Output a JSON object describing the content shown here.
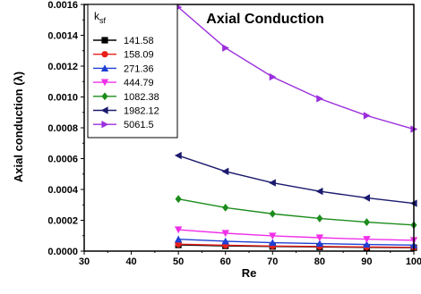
{
  "chart_data": {
    "type": "line",
    "title": "Axial Conduction",
    "xlabel": "Re",
    "ylabel": "Axial conduction (λ)",
    "xlim": [
      30,
      100
    ],
    "ylim": [
      0,
      0.0016
    ],
    "x_ticks": [
      "30",
      "40",
      "50",
      "60",
      "70",
      "80",
      "90",
      "100"
    ],
    "y_ticks": [
      "0.0000",
      "0.0002",
      "0.0004",
      "0.0006",
      "0.0008",
      "0.0010",
      "0.0012",
      "0.0014",
      "0.0016"
    ],
    "legend": {
      "title_main": "k",
      "title_sub": "sf",
      "placement": "top-left"
    },
    "x": [
      50,
      60,
      70,
      80,
      90,
      100
    ],
    "series": [
      {
        "name": "141.58",
        "color": "#000000",
        "marker": "square",
        "values": [
          4e-05,
          3.4e-05,
          3e-05,
          2.7e-05,
          2.4e-05,
          2.2e-05
        ]
      },
      {
        "name": "158.09",
        "color": "#e8201a",
        "marker": "circle",
        "values": [
          4.5e-05,
          3.8e-05,
          3.3e-05,
          3e-05,
          2.7e-05,
          2.4e-05
        ]
      },
      {
        "name": "271.36",
        "color": "#1f3fd4",
        "marker": "triangle-up",
        "values": [
          7.7e-05,
          6.4e-05,
          5.5e-05,
          4.9e-05,
          4.3e-05,
          3.9e-05
        ]
      },
      {
        "name": "444.79",
        "color": "#f030e8",
        "marker": "triangle-down",
        "values": [
          0.000139,
          0.000116,
          9.9e-05,
          8.7e-05,
          7.7e-05,
          7e-05
        ]
      },
      {
        "name": "1082.38",
        "color": "#1c8c1c",
        "marker": "diamond",
        "values": [
          0.000338,
          0.000282,
          0.000242,
          0.000212,
          0.000188,
          0.000169
        ]
      },
      {
        "name": "1982.12",
        "color": "#1a1a6e",
        "marker": "triangle-left",
        "values": [
          0.00062,
          0.000517,
          0.000443,
          0.000388,
          0.000345,
          0.00031
        ]
      },
      {
        "name": "5061.5",
        "color": "#9b2fdc",
        "marker": "triangle-right",
        "values": [
          0.001582,
          0.001318,
          0.00113,
          0.000989,
          0.000879,
          0.000791
        ]
      }
    ]
  }
}
